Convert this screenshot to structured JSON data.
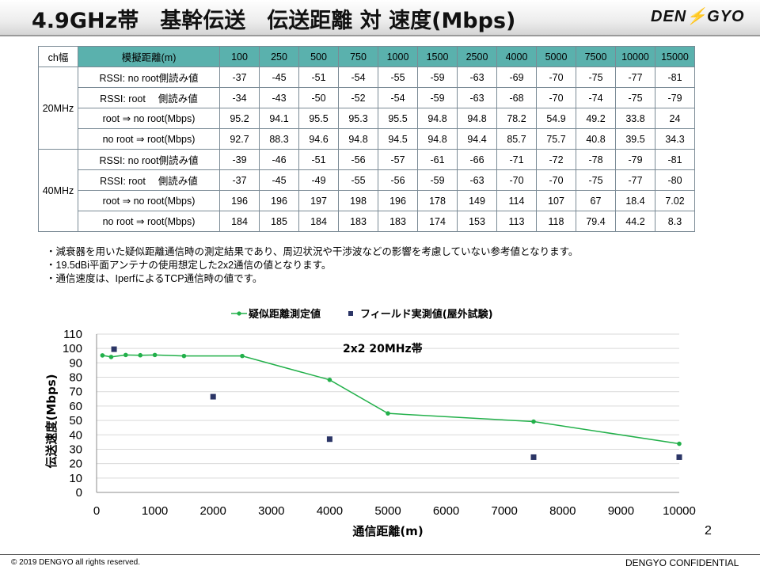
{
  "header": {
    "title": "4.9GHz帯　基幹伝送　伝送距離 対 速度(Mbps)",
    "logo_left": "DEN",
    "logo_mark": "⚡",
    "logo_right": "GYO"
  },
  "table": {
    "head_col1": "ch幅",
    "head_col2": "模擬距離(m)",
    "distances": [
      "100",
      "250",
      "500",
      "750",
      "1000",
      "1500",
      "2500",
      "4000",
      "5000",
      "7500",
      "10000",
      "15000"
    ],
    "groups": [
      {
        "label": "20MHz",
        "rows": [
          {
            "label": "RSSI:  no root側読み値",
            "values": [
              "-37",
              "-45",
              "-51",
              "-54",
              "-55",
              "-59",
              "-63",
              "-69",
              "-70",
              "-75",
              "-77",
              "-81"
            ]
          },
          {
            "label": "RSSI:  root　 側読み値",
            "values": [
              "-34",
              "-43",
              "-50",
              "-52",
              "-54",
              "-59",
              "-63",
              "-68",
              "-70",
              "-74",
              "-75",
              "-79"
            ]
          },
          {
            "label": "root ⇒ no root(Mbps)",
            "values": [
              "95.2",
              "94.1",
              "95.5",
              "95.3",
              "95.5",
              "94.8",
              "94.8",
              "78.2",
              "54.9",
              "49.2",
              "33.8",
              "24"
            ]
          },
          {
            "label": "no root ⇒ root(Mbps)",
            "values": [
              "92.7",
              "88.3",
              "94.6",
              "94.8",
              "94.5",
              "94.8",
              "94.4",
              "85.7",
              "75.7",
              "40.8",
              "39.5",
              "34.3"
            ]
          }
        ]
      },
      {
        "label": "40MHz",
        "rows": [
          {
            "label": "RSSI:  no root側読み値",
            "values": [
              "-39",
              "-46",
              "-51",
              "-56",
              "-57",
              "-61",
              "-66",
              "-71",
              "-72",
              "-78",
              "-79",
              "-81"
            ]
          },
          {
            "label": "RSSI:  root　 側読み値",
            "values": [
              "-37",
              "-45",
              "-49",
              "-55",
              "-56",
              "-59",
              "-63",
              "-70",
              "-70",
              "-75",
              "-77",
              "-80"
            ]
          },
          {
            "label": "root ⇒ no root(Mbps)",
            "values": [
              "196",
              "196",
              "197",
              "198",
              "196",
              "178",
              "149",
              "114",
              "107",
              "67",
              "18.4",
              "7.02"
            ]
          },
          {
            "label": "no root ⇒ root(Mbps)",
            "values": [
              "184",
              "185",
              "184",
              "183",
              "183",
              "174",
              "153",
              "113",
              "118",
              "79.4",
              "44.2",
              "8.3"
            ]
          }
        ]
      }
    ]
  },
  "notes": [
    "・減衰器を用いた疑似距離通信時の測定結果であり、周辺状況や干渉波などの影響を考慮していない参考値となります。",
    "・19.5dBi平面アンテナの使用想定した2x2通信の値となります。",
    "・通信速度は、IperfによるTCP通信時の値です。"
  ],
  "chart_data": {
    "type": "line",
    "title": "2x2 20MHz帯",
    "xlabel": "通信距離(m)",
    "ylabel": "伝送速度(Mbps)",
    "xlim": [
      0,
      10000
    ],
    "ylim": [
      0,
      110
    ],
    "x_ticks": [
      "0",
      "1000",
      "2000",
      "3000",
      "4000",
      "5000",
      "6000",
      "7000",
      "8000",
      "9000",
      "10000"
    ],
    "y_ticks": [
      "0",
      "10",
      "20",
      "30",
      "40",
      "50",
      "60",
      "70",
      "80",
      "90",
      "100",
      "110"
    ],
    "grid": "horizontal",
    "legend_position": "top",
    "series": [
      {
        "name": "疑似距離測定値",
        "style": "line-with-dots",
        "color": "#22b04a",
        "x": [
          100,
          250,
          500,
          750,
          1000,
          1500,
          2500,
          4000,
          5000,
          7500,
          10000
        ],
        "y": [
          95.2,
          94.1,
          95.5,
          95.3,
          95.5,
          94.8,
          94.8,
          78.2,
          54.9,
          49.2,
          33.8
        ]
      },
      {
        "name": "フィールド実測値(屋外試験)",
        "style": "square-markers",
        "color": "#2b3566",
        "x": [
          300,
          2000,
          4000,
          7500,
          10000
        ],
        "y": [
          99.5,
          66.5,
          37,
          24.5,
          24.5
        ]
      }
    ]
  },
  "page_number": "2",
  "footer": {
    "copyright": "© 2019 DENGYO  all rights reserved.",
    "confidential": "DENGYO CONFIDENTIAL"
  }
}
